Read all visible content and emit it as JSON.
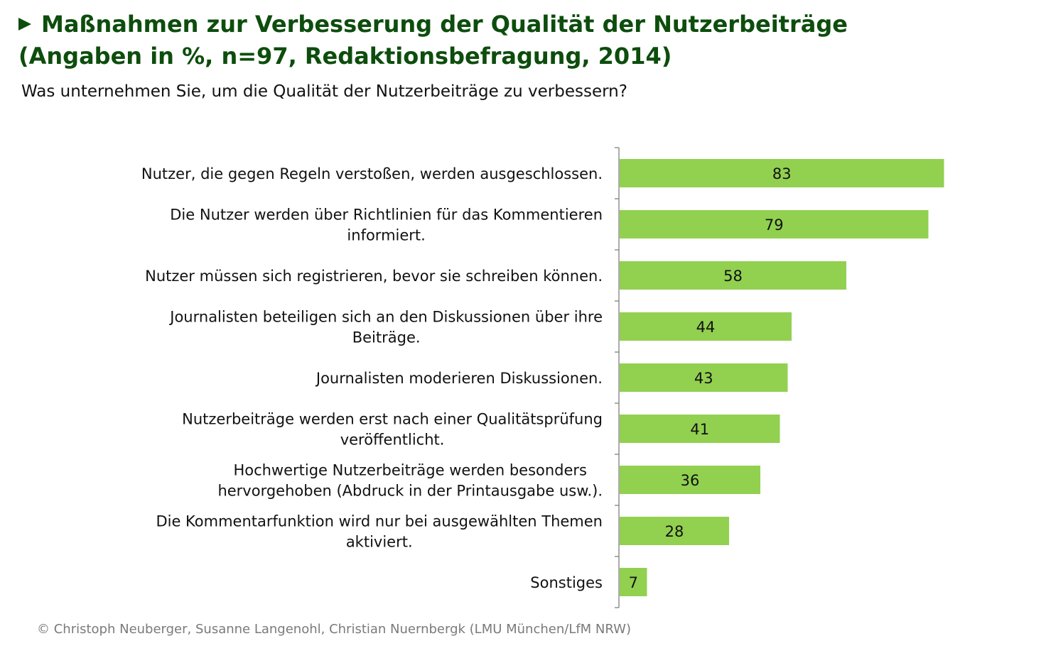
{
  "header": {
    "title_line1": "Maßnahmen zur Verbesserung der Qualität der Nutzerbeiträge",
    "title_line2": "(Angaben in %, n=97, Redaktionsbefragung, 2014)",
    "subtitle": "Was unternehmen Sie, um die Qualität der Nutzerbeiträge zu verbessern?"
  },
  "footer": {
    "credit": "© Christoph Neuberger, Susanne Langenohl, Christian Nuernbergk (LMU München/LfM NRW)"
  },
  "colors": {
    "title": "#0d4d0d",
    "bar": "#92d050",
    "axis": "#808080"
  },
  "icons": {
    "title_marker": "triangle-right-icon"
  },
  "chart_data": {
    "type": "bar",
    "orientation": "horizontal",
    "categories": [
      [
        "Nutzer, die gegen Regeln verstoßen, werden ausgeschlossen."
      ],
      [
        "Die Nutzer werden über Richtlinien für das Kommentieren",
        "informiert."
      ],
      [
        "Nutzer müssen sich registrieren, bevor sie schreiben können."
      ],
      [
        "Journalisten beteiligen sich an den Diskussionen über ihre",
        "Beiträge."
      ],
      [
        "Journalisten moderieren Diskussionen."
      ],
      [
        "Nutzerbeiträge werden erst nach einer Qualitätsprüfung",
        "veröffentlicht."
      ],
      [
        "Hochwertige Nutzerbeiträge werden besonders",
        "hervorgehoben (Abdruck in der Printausgabe usw.)."
      ],
      [
        "Die Kommentarfunktion wird nur bei ausgewählten Themen",
        "aktiviert."
      ],
      [
        "Sonstiges"
      ]
    ],
    "values": [
      83,
      79,
      58,
      44,
      43,
      41,
      36,
      28,
      7
    ],
    "xlim": [
      0,
      100
    ],
    "grid": false,
    "legend": "none",
    "data_labels": true
  }
}
